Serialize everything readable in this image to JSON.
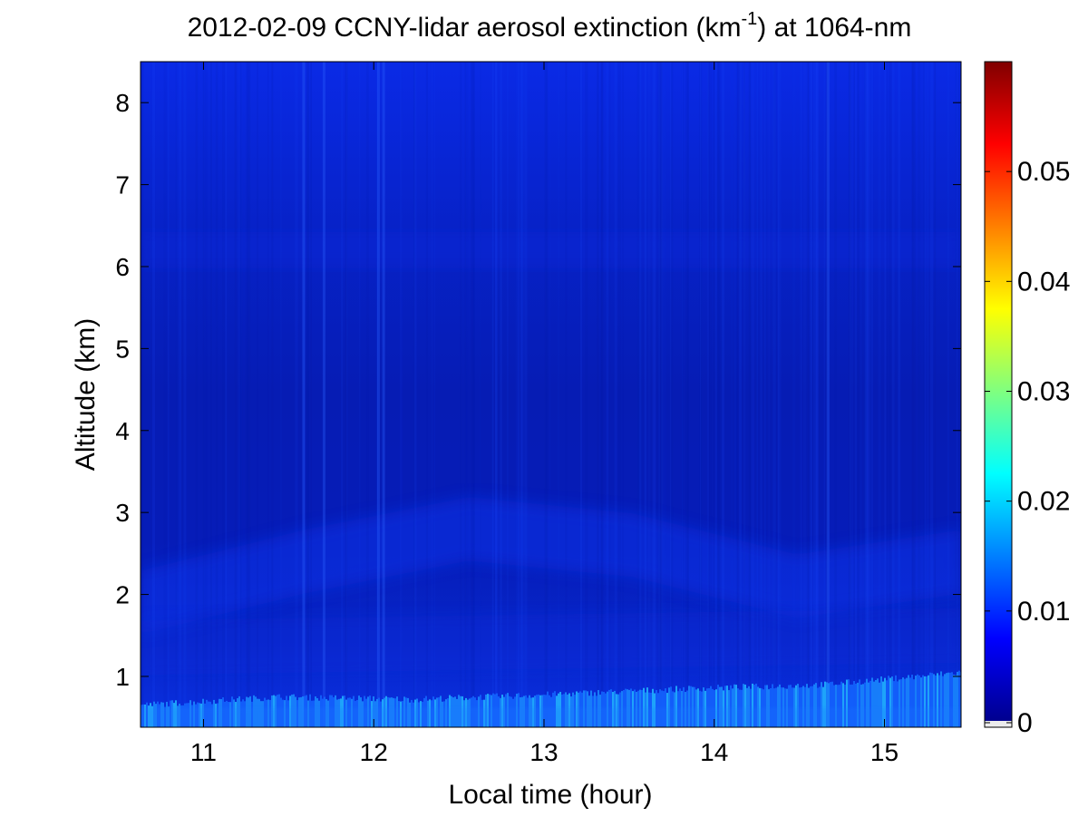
{
  "chart_data": {
    "type": "heatmap",
    "title_prefix": "2012-02-09 CCNY-lidar aerosol extinction (km",
    "title_superscript": "-1",
    "title_suffix": ") at 1064-nm",
    "xlabel": "Local time (hour)",
    "ylabel": "Altitude (km)",
    "xlim": [
      10.63,
      15.45
    ],
    "ylim": [
      0.38,
      8.5
    ],
    "x_ticks": [
      11,
      12,
      13,
      14,
      15
    ],
    "y_ticks": [
      1,
      2,
      3,
      4,
      5,
      6,
      7,
      8
    ],
    "colorbar": {
      "range": [
        0,
        0.06
      ],
      "ticks": [
        0,
        0.01,
        0.02,
        0.03,
        0.04,
        0.05
      ],
      "tick_labels": [
        "0",
        "0.01",
        "0.02",
        "0.03",
        "0.04",
        "0.05"
      ],
      "colormap": "jet"
    },
    "field_description": {
      "background_value": 0.004,
      "surface_layer": {
        "top_km": [
          0.65,
          0.75,
          0.72,
          0.78,
          0.85,
          0.9,
          1.05
        ],
        "value": 0.012
      },
      "elevated_layer": {
        "altitude_km": [
          1.9,
          2.4,
          2.8,
          2.6,
          2.1,
          2.4
        ],
        "value": 0.006
      },
      "upper_haze_km": 6.2
    }
  }
}
